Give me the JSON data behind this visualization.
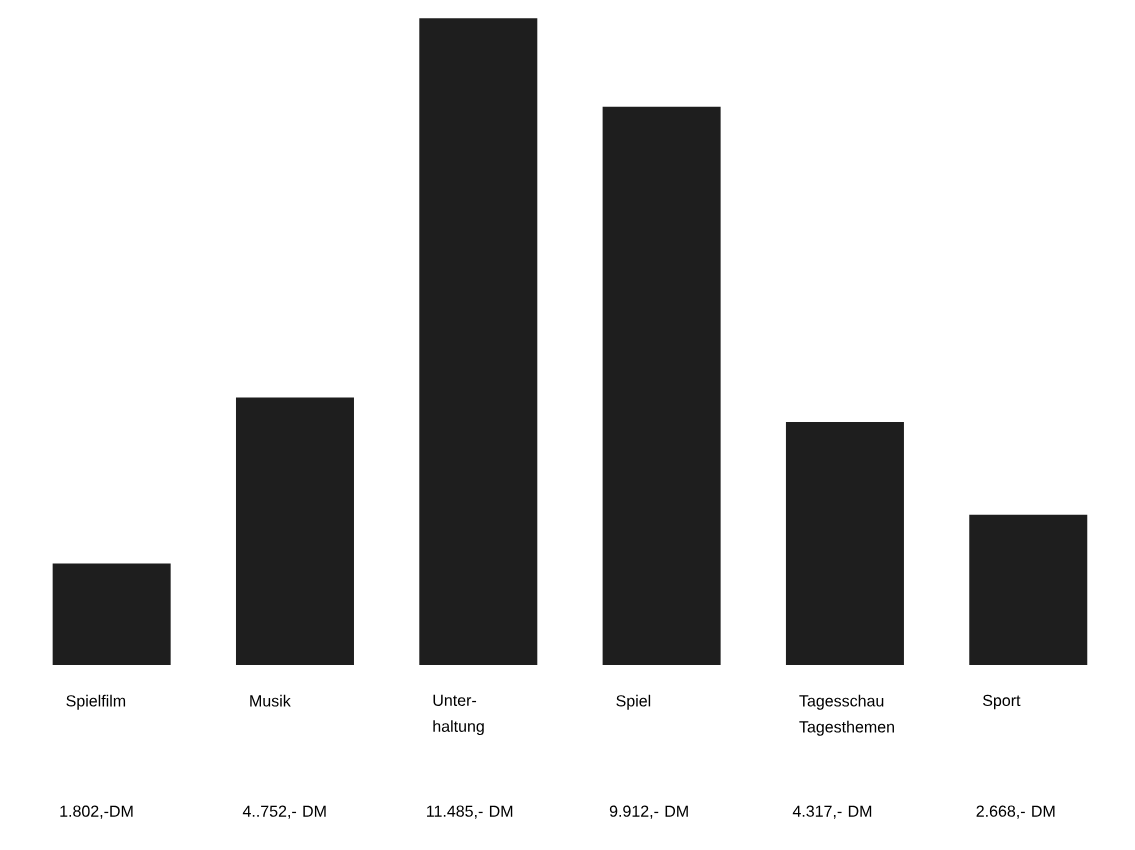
{
  "chart_data": {
    "type": "bar",
    "categories": [
      "Spielfilm",
      "Musik",
      "Unter-haltung",
      "Spiel",
      "Tagesschau Tagesthemen",
      "Sport"
    ],
    "values": [
      1802,
      4752,
      11485,
      9912,
      4317,
      2668
    ],
    "value_labels": [
      "1.802,-DM",
      "4..752,- DM",
      "11.485,- DM",
      "9.912,- DM",
      "4.317,- DM",
      "2.668,- DM"
    ],
    "color": "#1e1e1e"
  }
}
